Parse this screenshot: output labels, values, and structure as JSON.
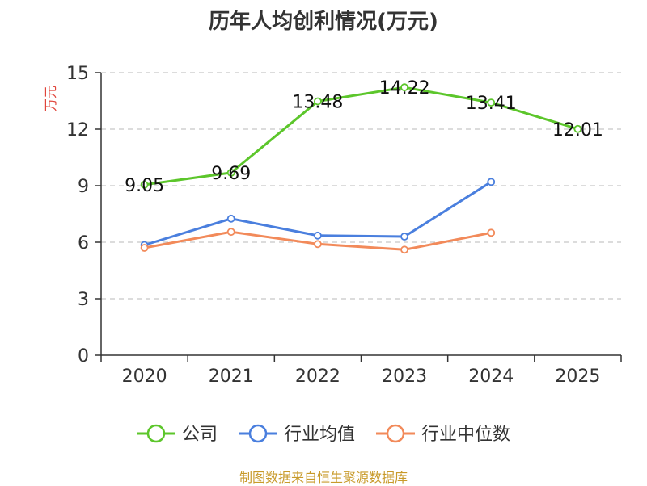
{
  "chart_data": {
    "type": "line",
    "title": "历年人均创利情况(万元)",
    "ylabel": "万元",
    "xlabel": "",
    "ylim": [
      0,
      15
    ],
    "yticks": [
      0,
      3,
      6,
      9,
      12,
      15
    ],
    "categories": [
      "2020",
      "2021",
      "2022",
      "2023",
      "2024",
      "2025"
    ],
    "grid": true,
    "legend_position": "bottom",
    "series": [
      {
        "name": "公司",
        "color": "#5cc62b",
        "values": [
          9.05,
          9.69,
          13.48,
          14.22,
          13.41,
          12.01
        ],
        "labels": [
          "9.05",
          "9.69",
          "13.48",
          "14.22",
          "13.41",
          "12.01"
        ]
      },
      {
        "name": "行业均值",
        "color": "#4a7fde",
        "values": [
          5.85,
          7.25,
          6.35,
          6.3,
          9.2,
          null
        ]
      },
      {
        "name": "行业中位数",
        "color": "#f28a5a",
        "values": [
          5.7,
          6.55,
          5.9,
          5.6,
          6.5,
          null
        ]
      }
    ]
  },
  "footer": {
    "source": "制图数据来自恒生聚源数据库"
  }
}
